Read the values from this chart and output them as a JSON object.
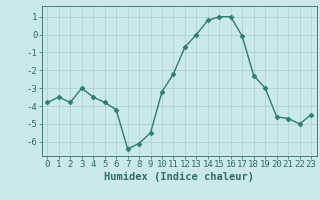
{
  "x": [
    0,
    1,
    2,
    3,
    4,
    5,
    6,
    7,
    8,
    9,
    10,
    11,
    12,
    13,
    14,
    15,
    16,
    17,
    18,
    19,
    20,
    21,
    22,
    23
  ],
  "y": [
    -3.8,
    -3.5,
    -3.8,
    -3.0,
    -3.5,
    -3.8,
    -4.2,
    -6.4,
    -6.1,
    -5.5,
    -3.2,
    -2.2,
    -0.7,
    0.0,
    0.8,
    1.0,
    1.0,
    -0.1,
    -2.3,
    -3.0,
    -4.6,
    -4.7,
    -5.0,
    -4.5
  ],
  "line_color": "#2e7d6e",
  "marker": "D",
  "marker_size": 2.5,
  "bg_color": "#cce9e9",
  "grid_color": "#aacfcf",
  "xlabel": "Humidex (Indice chaleur)",
  "xlim": [
    -0.5,
    23.5
  ],
  "ylim": [
    -6.8,
    1.6
  ],
  "yticks": [
    -6,
    -5,
    -4,
    -3,
    -2,
    -1,
    0,
    1
  ],
  "xticks": [
    0,
    1,
    2,
    3,
    4,
    5,
    6,
    7,
    8,
    9,
    10,
    11,
    12,
    13,
    14,
    15,
    16,
    17,
    18,
    19,
    20,
    21,
    22,
    23
  ],
  "xtick_labels": [
    "0",
    "1",
    "2",
    "3",
    "4",
    "5",
    "6",
    "7",
    "8",
    "9",
    "10",
    "11",
    "12",
    "13",
    "14",
    "15",
    "16",
    "17",
    "18",
    "19",
    "20",
    "21",
    "22",
    "23"
  ],
  "tick_color": "#2e6e62",
  "tick_fontsize": 6.5,
  "xlabel_fontsize": 7.5
}
